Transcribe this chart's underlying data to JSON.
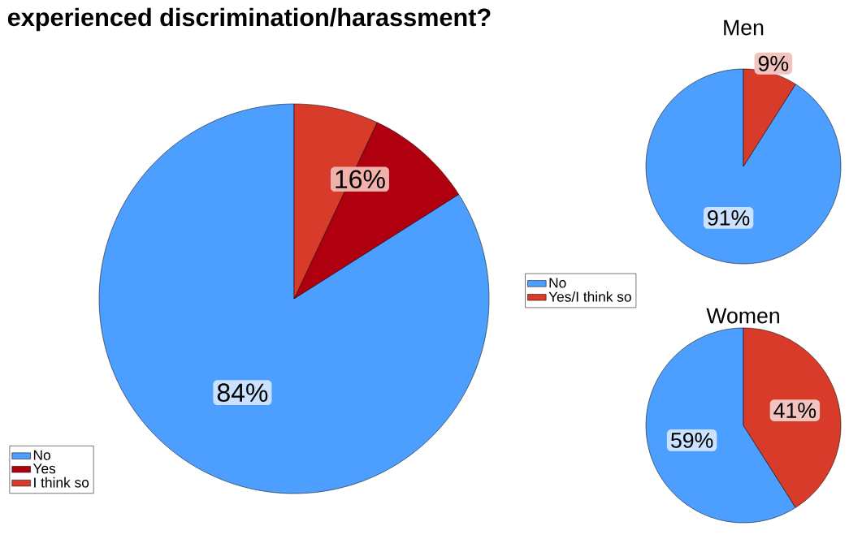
{
  "chart_data": [
    {
      "type": "pie",
      "title": "experienced discrimination/harassment?",
      "categories": [
        "No",
        "Yes",
        "I think so"
      ],
      "values": [
        84,
        9,
        7
      ],
      "colors": [
        "#4d9fff",
        "#b00010",
        "#d83b2a"
      ],
      "value_labels": [
        "84%",
        null,
        null
      ],
      "annotations": [
        "16%"
      ],
      "legend": "bottom left"
    },
    {
      "type": "pie",
      "title": "Men",
      "categories": [
        null,
        null
      ],
      "values": [
        91,
        9
      ],
      "colors": [
        "#4d9fff",
        "#d83b2a"
      ],
      "value_labels": [
        "91%",
        "9%"
      ]
    },
    {
      "type": "pie",
      "title": "Women",
      "categories": [
        "No",
        "Yes/I think so"
      ],
      "values": [
        59,
        41
      ],
      "colors": [
        "#4d9fff",
        "#d83b2a"
      ],
      "value_labels": [
        "59%",
        "41%"
      ],
      "legend": "top left"
    }
  ]
}
